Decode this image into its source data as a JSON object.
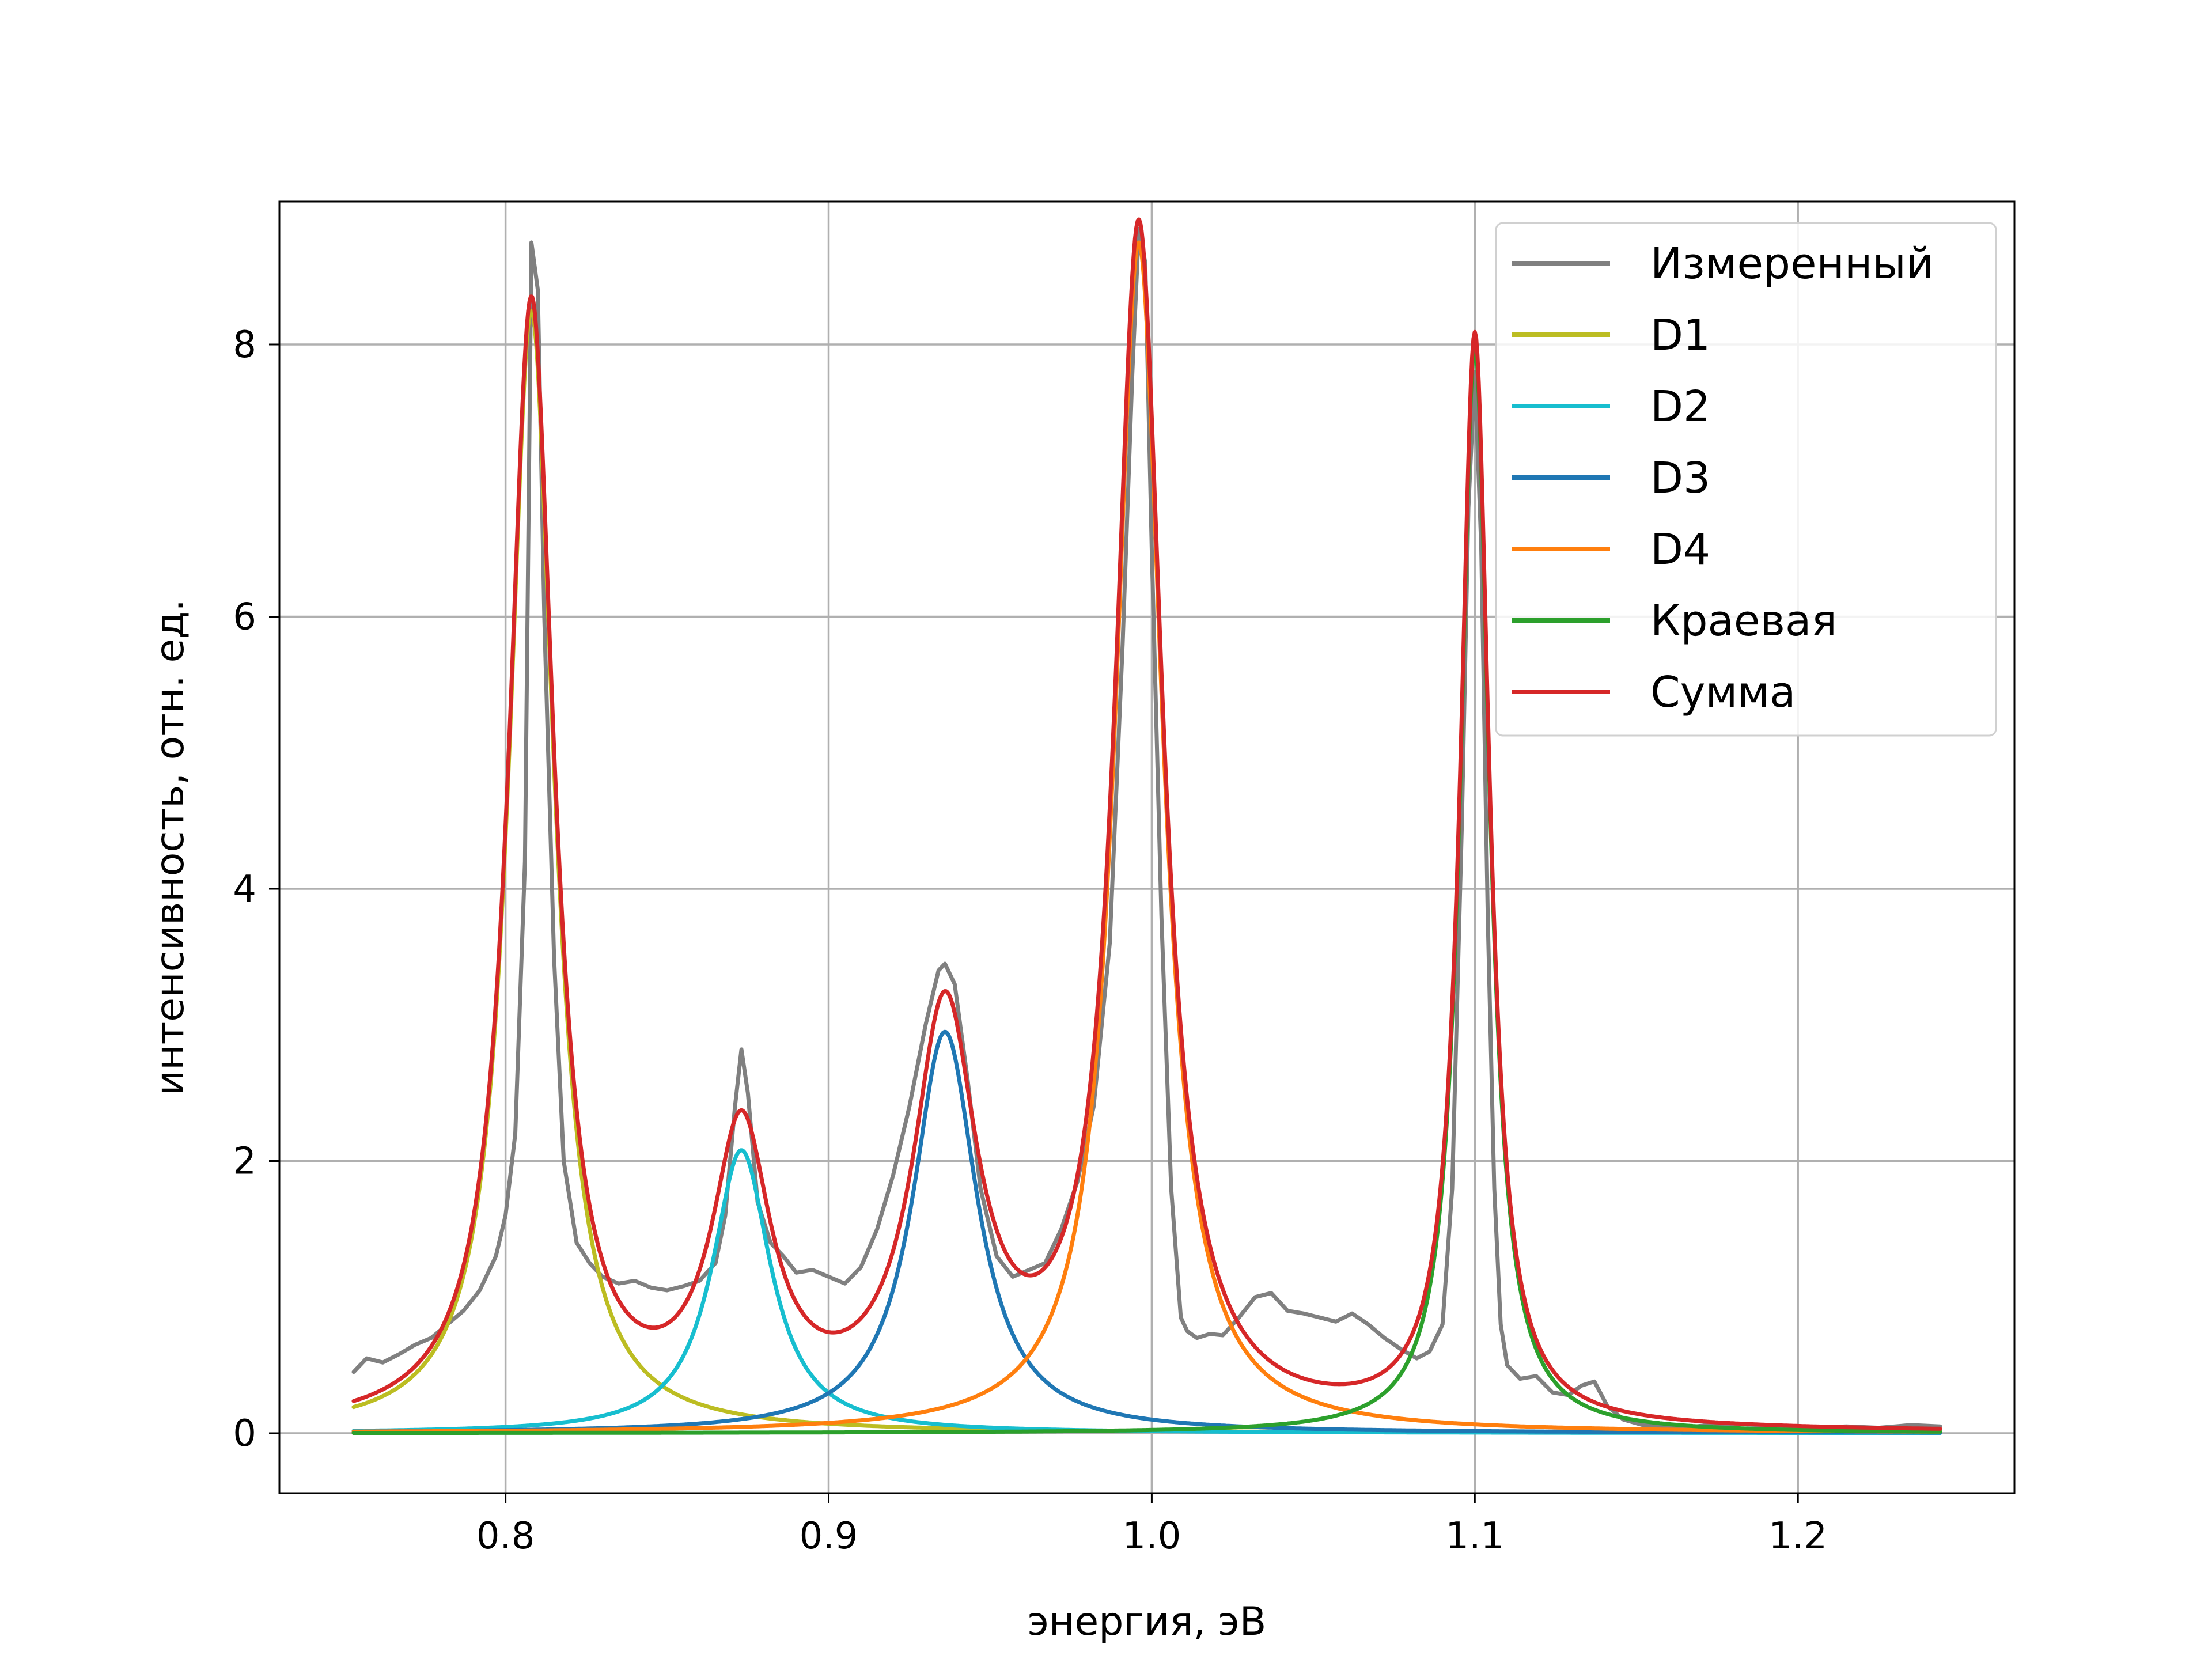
{
  "chart_data": {
    "type": "line",
    "title": "",
    "xlabel": "энергия, эВ",
    "ylabel": "интенсивность, отн. ед.",
    "xlim": [
      0.73,
      1.267
    ],
    "ylim": [
      -0.44,
      9.05
    ],
    "xticks": [
      0.8,
      0.9,
      1.0,
      1.1,
      1.2
    ],
    "xtick_labels": [
      "0.8",
      "0.9",
      "1.0",
      "1.1",
      "1.2"
    ],
    "yticks": [
      0,
      2,
      4,
      6,
      8
    ],
    "ytick_labels": [
      "0",
      "2",
      "4",
      "6",
      "8"
    ],
    "grid": true,
    "legend_position": "top-right",
    "series": [
      {
        "name": "Измеренный",
        "color": "#808080",
        "x": [
          0.753,
          0.757,
          0.762,
          0.767,
          0.772,
          0.777,
          0.782,
          0.787,
          0.792,
          0.797,
          0.8,
          0.803,
          0.806,
          0.808,
          0.81,
          0.812,
          0.815,
          0.818,
          0.822,
          0.826,
          0.83,
          0.835,
          0.84,
          0.845,
          0.85,
          0.855,
          0.86,
          0.865,
          0.868,
          0.871,
          0.873,
          0.875,
          0.878,
          0.882,
          0.886,
          0.89,
          0.895,
          0.9,
          0.905,
          0.91,
          0.915,
          0.92,
          0.925,
          0.93,
          0.934,
          0.936,
          0.939,
          0.943,
          0.947,
          0.952,
          0.957,
          0.962,
          0.967,
          0.972,
          0.977,
          0.982,
          0.987,
          0.991,
          0.994,
          0.996,
          0.998,
          1.0,
          1.003,
          1.006,
          1.009,
          1.011,
          1.014,
          1.018,
          1.022,
          1.027,
          1.032,
          1.037,
          1.042,
          1.047,
          1.052,
          1.057,
          1.062,
          1.067,
          1.072,
          1.077,
          1.082,
          1.086,
          1.09,
          1.093,
          1.096,
          1.098,
          1.1,
          1.102,
          1.104,
          1.106,
          1.108,
          1.11,
          1.114,
          1.119,
          1.124,
          1.129,
          1.133,
          1.137,
          1.141,
          1.146,
          1.152,
          1.158,
          1.165,
          1.172,
          1.18,
          1.188,
          1.196,
          1.205,
          1.215,
          1.225,
          1.235,
          1.244
        ],
        "y": [
          0.45,
          0.55,
          0.52,
          0.58,
          0.65,
          0.7,
          0.8,
          0.9,
          1.05,
          1.3,
          1.6,
          2.2,
          4.2,
          8.75,
          8.4,
          6.0,
          3.5,
          2.0,
          1.4,
          1.25,
          1.15,
          1.1,
          1.12,
          1.07,
          1.05,
          1.08,
          1.12,
          1.25,
          1.6,
          2.4,
          2.82,
          2.5,
          1.7,
          1.4,
          1.3,
          1.18,
          1.2,
          1.15,
          1.1,
          1.22,
          1.5,
          1.9,
          2.4,
          3.0,
          3.4,
          3.45,
          3.3,
          2.6,
          1.8,
          1.3,
          1.15,
          1.2,
          1.25,
          1.5,
          1.85,
          2.4,
          3.6,
          5.8,
          7.8,
          8.85,
          8.6,
          6.5,
          3.8,
          1.8,
          0.85,
          0.75,
          0.7,
          0.73,
          0.72,
          0.85,
          1.0,
          1.03,
          0.9,
          0.88,
          0.85,
          0.82,
          0.88,
          0.8,
          0.7,
          0.62,
          0.55,
          0.6,
          0.8,
          1.8,
          4.5,
          6.8,
          7.8,
          6.5,
          3.8,
          1.8,
          0.8,
          0.5,
          0.4,
          0.42,
          0.3,
          0.28,
          0.35,
          0.38,
          0.2,
          0.1,
          0.06,
          0.05,
          0.04,
          0.06,
          0.07,
          0.06,
          0.05,
          0.04,
          0.05,
          0.04,
          0.06,
          0.05
        ]
      },
      {
        "name": "D1",
        "color": "#bcbd22",
        "center": 0.808,
        "amplitude": 8.25,
        "hwhm": 0.0085
      },
      {
        "name": "D2",
        "color": "#17becf",
        "center": 0.873,
        "amplitude": 2.08,
        "hwhm": 0.011
      },
      {
        "name": "D3",
        "color": "#1f77b4",
        "center": 0.936,
        "amplitude": 2.95,
        "hwhm": 0.012
      },
      {
        "name": "D4",
        "color": "#ff7f0e",
        "center": 0.996,
        "amplitude": 8.75,
        "hwhm": 0.009
      },
      {
        "name": "Краевая",
        "color": "#2ca02c",
        "center": 1.1,
        "amplitude": 8.0,
        "hwhm": 0.0055
      },
      {
        "name": "Сумма",
        "color": "#d62728",
        "type": "sum"
      }
    ]
  }
}
